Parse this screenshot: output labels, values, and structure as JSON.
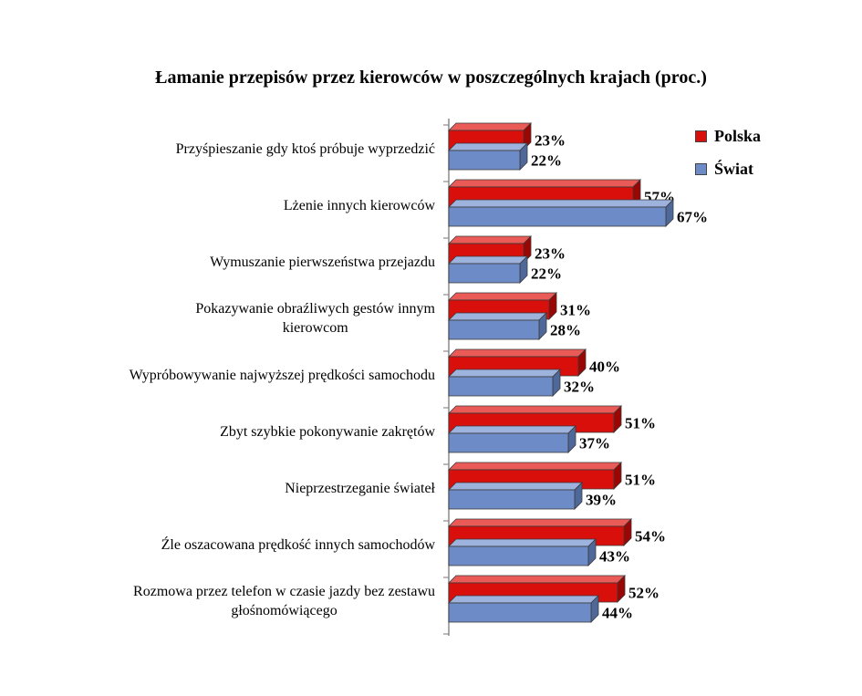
{
  "title": "Łamanie przepisów przez kierowców w poszczególnych krajach (proc.)",
  "chart_data": {
    "type": "bar",
    "orientation": "horizontal",
    "style": "3d",
    "title": "Łamanie przepisów przez kierowców w poszczególnych krajach (proc.)",
    "value_suffix": "%",
    "xlim": [
      0,
      70
    ],
    "grid": false,
    "legend_position": "top-right",
    "categories": [
      [
        "Przyśpieszanie gdy ktoś próbuje wyprzedzić"
      ],
      [
        "Lżenie innych kierowców"
      ],
      [
        "Wymuszanie pierwszeństwa przejazdu"
      ],
      [
        "Pokazywanie obraźliwych gestów innym",
        "kierowcom"
      ],
      [
        "Wypróbowywanie najwyższej prędkości samochodu"
      ],
      [
        "Zbyt szybkie pokonywanie zakrętów"
      ],
      [
        "Nieprzestrzeganie świateł"
      ],
      [
        "Źle oszacowana prędkość innych samochodów"
      ],
      [
        "Rozmowa przez telefon w czasie jazdy bez zestawu",
        "głośnomówiącego"
      ]
    ],
    "series": [
      {
        "name": "Polska",
        "key": "polska",
        "color": "#d90f0b",
        "color_top": "#ea5a57",
        "color_side": "#9a0604",
        "values": [
          23,
          57,
          23,
          31,
          40,
          51,
          51,
          54,
          52
        ]
      },
      {
        "name": "Świat",
        "key": "swiat",
        "color": "#6d8cc7",
        "color_top": "#9db2dc",
        "color_side": "#4e6899",
        "values": [
          22,
          67,
          22,
          28,
          32,
          37,
          39,
          43,
          44
        ]
      }
    ]
  }
}
